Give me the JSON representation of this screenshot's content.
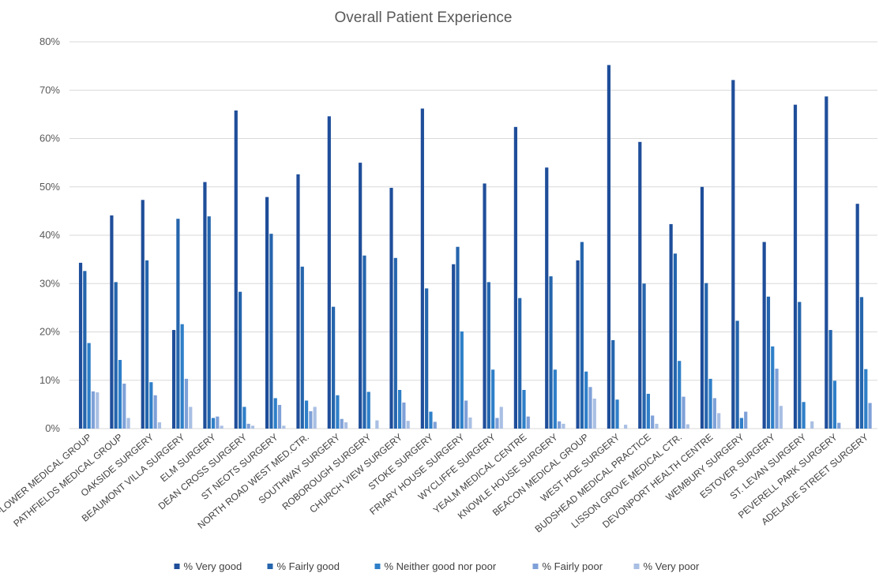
{
  "chart_data": {
    "type": "bar",
    "title": "Overall Patient Experience",
    "xlabel": "",
    "ylabel": "",
    "ylim": [
      0,
      80
    ],
    "y_ticks": [
      "0%",
      "10%",
      "20%",
      "30%",
      "40%",
      "50%",
      "60%",
      "70%",
      "80%"
    ],
    "grid": true,
    "legend_position": "bottom",
    "categories": [
      "MAYFLOWER MEDICAL GROUP",
      "PATHFIELDS MEDICAL GROUP",
      "OAKSIDE SURGERY",
      "BEAUMONT VILLA SURGERY",
      "ELM SURGERY",
      "DEAN CROSS SURGERY",
      "ST NEOTS SURGERY",
      "NORTH ROAD WEST MED.CTR.",
      "SOUTHWAY SURGERY",
      "ROBOROUGH SURGERY",
      "CHURCH VIEW SURGERY",
      "STOKE SURGERY",
      "FRIARY HOUSE SURGERY",
      "WYCLIFFE SURGERY",
      "YEALM MEDICAL CENTRE",
      "KNOWLE HOUSE SURGERY",
      "BEACON MEDICAL GROUP",
      "WEST HOE SURGERY",
      "BUDSHEAD MEDICAL PRACTICE",
      "LISSON GROVE MEDICAL CTR.",
      "DEVONPORT HEALTH CENTRE",
      "WEMBURY SURGERY",
      "ESTOVER SURGERY",
      "ST. LEVAN SURGERY",
      "PEVERELL PARK SURGERY",
      "ADELAIDE STREET SURGERY"
    ],
    "series": [
      {
        "name": "% Very good",
        "color": "#1f4e9a",
        "values": [
          34.3,
          44.1,
          47.3,
          20.4,
          51.0,
          65.8,
          47.9,
          52.6,
          64.6,
          55.0,
          49.8,
          66.2,
          34.0,
          50.7,
          62.4,
          54.0,
          34.8,
          75.2,
          59.3,
          42.3,
          50.0,
          72.1,
          38.6,
          67.0,
          68.7,
          46.5
        ]
      },
      {
        "name": "% Fairly good",
        "color": "#2565ad",
        "values": [
          32.6,
          30.3,
          34.8,
          43.4,
          43.9,
          28.3,
          40.3,
          33.5,
          25.2,
          35.8,
          35.3,
          29.0,
          37.6,
          30.3,
          27.0,
          31.5,
          38.6,
          18.3,
          30.0,
          36.2,
          30.1,
          22.3,
          27.3,
          26.2,
          20.4,
          27.2
        ]
      },
      {
        "name": "% Neither good nor poor",
        "color": "#2f7fc8",
        "values": [
          17.7,
          14.2,
          9.6,
          21.6,
          2.2,
          4.5,
          6.3,
          5.8,
          6.9,
          7.6,
          8.0,
          3.5,
          20.1,
          12.2,
          8.0,
          12.2,
          11.8,
          6.0,
          7.2,
          14.0,
          10.3,
          2.2,
          17.0,
          5.5,
          9.9,
          12.3
        ]
      },
      {
        "name": "% Fairly poor",
        "color": "#7fa1d8",
        "values": [
          7.7,
          9.3,
          6.9,
          10.3,
          2.5,
          1.0,
          4.9,
          3.6,
          2.0,
          0,
          5.4,
          1.4,
          5.8,
          2.2,
          2.5,
          1.5,
          8.6,
          0,
          2.7,
          6.6,
          6.3,
          3.5,
          12.4,
          0,
          1.2,
          5.3
        ]
      },
      {
        "name": "% Very poor",
        "color": "#a9bfe3",
        "values": [
          7.5,
          2.2,
          1.3,
          4.5,
          0.6,
          0.6,
          0.6,
          4.5,
          1.3,
          1.7,
          1.6,
          0,
          2.3,
          4.5,
          0,
          1.0,
          6.2,
          0.8,
          1.0,
          0.9,
          3.2,
          0,
          4.7,
          1.5,
          0,
          0
        ]
      }
    ]
  }
}
